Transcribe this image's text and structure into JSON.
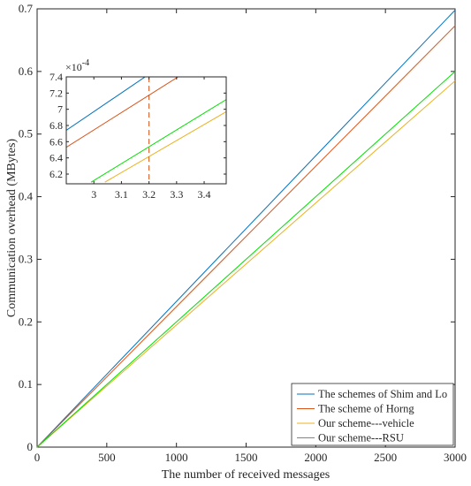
{
  "chart_data": [
    {
      "type": "line",
      "xlabel": "The number of received messages",
      "ylabel": "Communication overhead  (MBytes)",
      "xlim": [
        0,
        3000
      ],
      "ylim": [
        0,
        0.7
      ],
      "xticks": [
        0,
        500,
        1000,
        1500,
        2000,
        2500,
        3000
      ],
      "xtick_labels": [
        "0",
        "500",
        "1000",
        "1500",
        "2000",
        "2500",
        "3000"
      ],
      "yticks": [
        0,
        0.1,
        0.2,
        0.3,
        0.4,
        0.5,
        0.6,
        0.7
      ],
      "ytick_labels": [
        "0",
        "0.1",
        "0.2",
        "0.3",
        "0.4",
        "0.5",
        "0.6",
        "0.7"
      ],
      "grid": false,
      "legend_position": "bottom-right",
      "series": [
        {
          "name": "The schemes of Shim and Lo",
          "color": "#0072BD",
          "x": [
            0,
            3000
          ],
          "y": [
            0,
            0.698
          ]
        },
        {
          "name": "The scheme of Horng",
          "color": "#D95319",
          "x": [
            0,
            3000
          ],
          "y": [
            0,
            0.673
          ]
        },
        {
          "name": "Our scheme---vehicle",
          "color": "#EDB120",
          "x": [
            0,
            3000
          ],
          "y": [
            0,
            0.585
          ]
        },
        {
          "name": "Our scheme---RSU",
          "color": "#00E000",
          "x": [
            0,
            3000
          ],
          "y": [
            0,
            0.6
          ]
        }
      ]
    },
    {
      "type": "line",
      "inset": true,
      "xlim": [
        2.9,
        3.48
      ],
      "ylim": [
        6.08,
        7.4
      ],
      "xticks": [
        3,
        3.1,
        3.2,
        3.3,
        3.4
      ],
      "xtick_labels": [
        "3",
        "3.1",
        "3.2",
        "3.3",
        "3.4"
      ],
      "yticks": [
        6.2,
        6.4,
        6.6,
        6.8,
        7,
        7.2,
        7.4
      ],
      "ytick_labels": [
        "6.2",
        "6.4",
        "6.6",
        "6.8",
        "7",
        "7.2",
        "7.4"
      ],
      "y_multiplier": "×10",
      "y_multiplier_exp": "-4",
      "reference_line": {
        "x": 3.2,
        "color": "#D95319",
        "style": "dashed"
      },
      "series": [
        {
          "name": "The schemes of Shim and Lo",
          "color": "#0072BD",
          "x": [
            2.9,
            3.19
          ],
          "y": [
            6.74,
            7.41
          ]
        },
        {
          "name": "The scheme of Horng",
          "color": "#D95319",
          "x": [
            2.9,
            3.31
          ],
          "y": [
            6.53,
            7.41
          ]
        },
        {
          "name": "Our scheme---vehicle",
          "color": "#EDB120",
          "x": [
            3.04,
            3.48
          ],
          "y": [
            6.1,
            6.97
          ]
        },
        {
          "name": "Our scheme---RSU",
          "color": "#00E000",
          "x": [
            2.99,
            3.48
          ],
          "y": [
            6.1,
            7.12
          ]
        }
      ]
    }
  ]
}
